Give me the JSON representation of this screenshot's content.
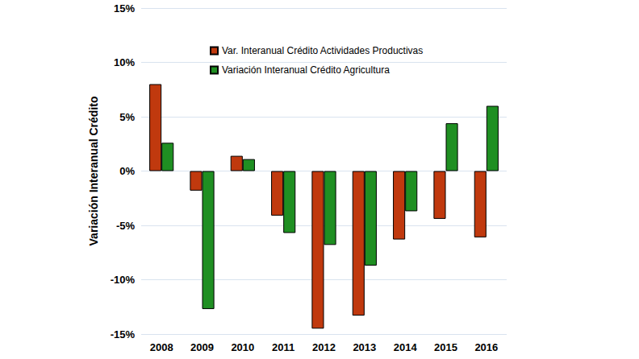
{
  "chart_data": {
    "type": "bar",
    "y_label": "Variación Interanual Crédito",
    "categories": [
      "2008",
      "2009",
      "2010",
      "2011",
      "2012",
      "2013",
      "2014",
      "2015",
      "2016"
    ],
    "series": [
      {
        "name": "Var. Interanual Crédito Actividades Productivas",
        "color": "#c0390e",
        "values": [
          8.0,
          -1.8,
          1.4,
          -4.1,
          -14.5,
          -13.3,
          -6.3,
          -4.4,
          -6.1
        ]
      },
      {
        "name": "Variación Interanual Crédito Agricultura",
        "color": "#1f8f22",
        "values": [
          2.6,
          -12.7,
          1.1,
          -5.7,
          -6.8,
          -8.7,
          -3.7,
          4.4,
          6.0
        ]
      }
    ],
    "ylim": [
      -15,
      15
    ],
    "yticks": [
      {
        "value": -15,
        "label": "-15%"
      },
      {
        "value": -10,
        "label": "-10%"
      },
      {
        "value": -5,
        "label": "-5%"
      },
      {
        "value": 0,
        "label": "0%"
      },
      {
        "value": 5,
        "label": "5%"
      },
      {
        "value": 10,
        "label": "10%"
      },
      {
        "value": 15,
        "label": "15%"
      }
    ],
    "grid": true,
    "legend": "upper left"
  }
}
